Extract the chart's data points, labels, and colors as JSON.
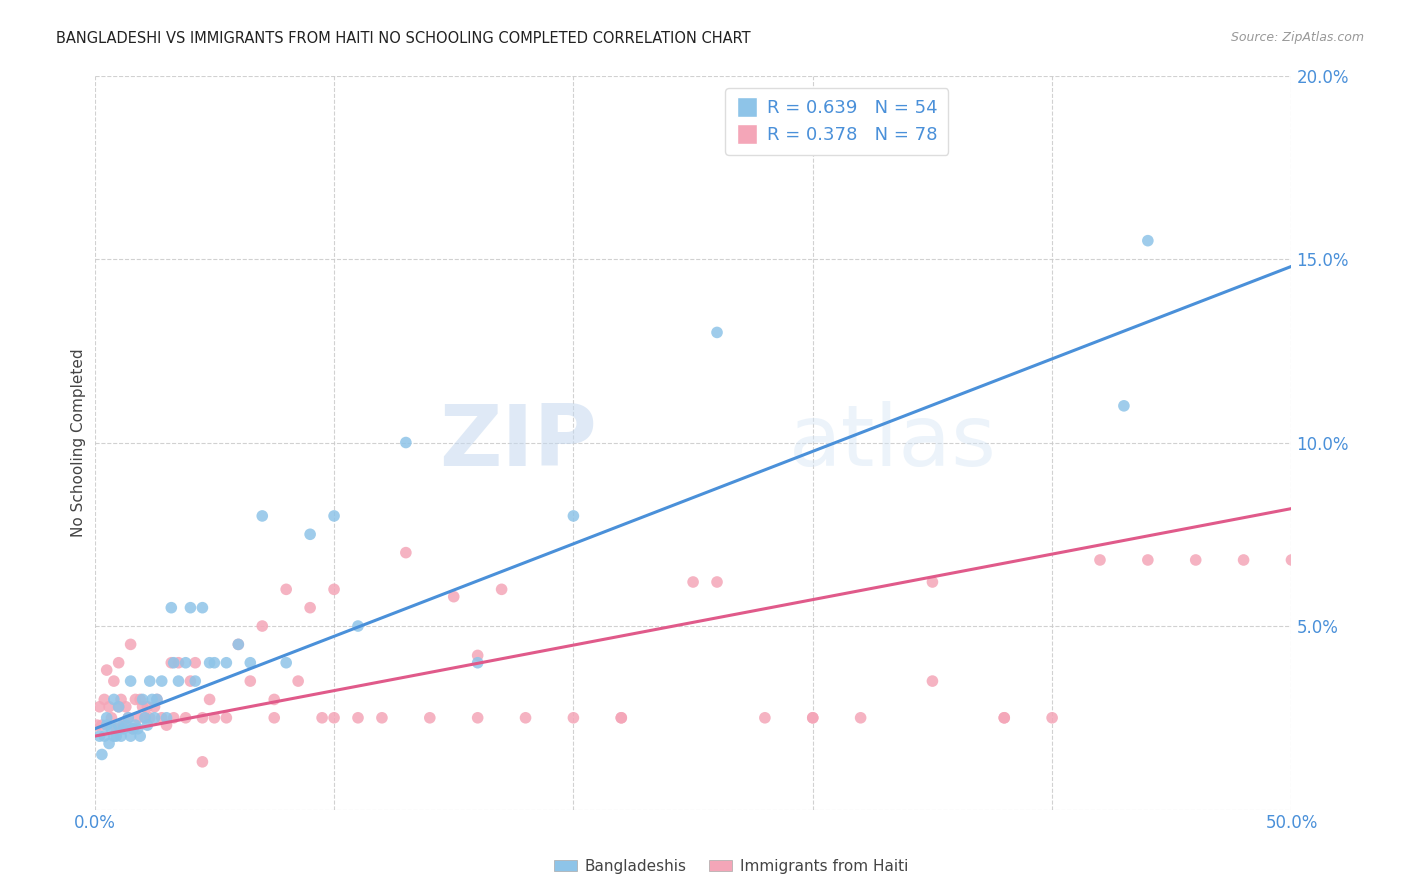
{
  "title": "BANGLADESHI VS IMMIGRANTS FROM HAITI NO SCHOOLING COMPLETED CORRELATION CHART",
  "source": "Source: ZipAtlas.com",
  "ylabel": "No Schooling Completed",
  "xlim": [
    0.0,
    0.5
  ],
  "ylim": [
    0.0,
    0.2
  ],
  "xtick_labels": [
    "0.0%",
    "",
    "",
    "",
    "",
    "50.0%"
  ],
  "xtick_vals": [
    0.0,
    0.1,
    0.2,
    0.3,
    0.4,
    0.5
  ],
  "ytick_labels": [
    "",
    "5.0%",
    "10.0%",
    "15.0%",
    "20.0%"
  ],
  "ytick_vals": [
    0.0,
    0.05,
    0.1,
    0.15,
    0.2
  ],
  "legend1_label": "R = 0.639   N = 54",
  "legend2_label": "R = 0.378   N = 78",
  "legend_label1": "Bangladeshis",
  "legend_label2": "Immigrants from Haiti",
  "blue_color": "#8ec4e8",
  "pink_color": "#f4a6b8",
  "blue_line_color": "#4a90d9",
  "pink_line_color": "#e05a8a",
  "watermark_zip": "ZIP",
  "watermark_atlas": "atlas",
  "blue_line_x0": 0.0,
  "blue_line_y0": 0.022,
  "blue_line_x1": 0.5,
  "blue_line_y1": 0.148,
  "pink_line_x0": 0.0,
  "pink_line_y0": 0.02,
  "pink_line_x1": 0.5,
  "pink_line_y1": 0.082,
  "blue_scatter_x": [
    0.002,
    0.003,
    0.004,
    0.005,
    0.005,
    0.006,
    0.007,
    0.008,
    0.008,
    0.009,
    0.01,
    0.01,
    0.011,
    0.012,
    0.013,
    0.014,
    0.015,
    0.015,
    0.016,
    0.017,
    0.018,
    0.019,
    0.02,
    0.021,
    0.022,
    0.023,
    0.024,
    0.025,
    0.026,
    0.028,
    0.03,
    0.032,
    0.033,
    0.035,
    0.038,
    0.04,
    0.042,
    0.045,
    0.048,
    0.05,
    0.055,
    0.06,
    0.065,
    0.07,
    0.08,
    0.09,
    0.1,
    0.11,
    0.13,
    0.16,
    0.2,
    0.26,
    0.43,
    0.44
  ],
  "blue_scatter_y": [
    0.02,
    0.015,
    0.02,
    0.023,
    0.025,
    0.018,
    0.022,
    0.02,
    0.03,
    0.02,
    0.023,
    0.028,
    0.02,
    0.022,
    0.023,
    0.025,
    0.02,
    0.035,
    0.022,
    0.023,
    0.022,
    0.02,
    0.03,
    0.025,
    0.023,
    0.035,
    0.03,
    0.025,
    0.03,
    0.035,
    0.025,
    0.055,
    0.04,
    0.035,
    0.04,
    0.055,
    0.035,
    0.055,
    0.04,
    0.04,
    0.04,
    0.045,
    0.04,
    0.08,
    0.04,
    0.075,
    0.08,
    0.05,
    0.1,
    0.04,
    0.08,
    0.13,
    0.11,
    0.155
  ],
  "pink_scatter_x": [
    0.001,
    0.002,
    0.003,
    0.004,
    0.005,
    0.006,
    0.007,
    0.008,
    0.009,
    0.01,
    0.01,
    0.011,
    0.012,
    0.013,
    0.014,
    0.015,
    0.016,
    0.017,
    0.018,
    0.019,
    0.02,
    0.021,
    0.022,
    0.023,
    0.025,
    0.026,
    0.028,
    0.03,
    0.032,
    0.033,
    0.035,
    0.038,
    0.04,
    0.042,
    0.045,
    0.048,
    0.05,
    0.055,
    0.06,
    0.065,
    0.07,
    0.075,
    0.08,
    0.085,
    0.09,
    0.095,
    0.1,
    0.11,
    0.12,
    0.13,
    0.14,
    0.15,
    0.16,
    0.17,
    0.18,
    0.2,
    0.22,
    0.25,
    0.28,
    0.3,
    0.32,
    0.35,
    0.38,
    0.4,
    0.42,
    0.44,
    0.46,
    0.48,
    0.5,
    0.26,
    0.35,
    0.3,
    0.38,
    0.16,
    0.22,
    0.1,
    0.075,
    0.045
  ],
  "pink_scatter_y": [
    0.023,
    0.028,
    0.023,
    0.03,
    0.038,
    0.028,
    0.025,
    0.035,
    0.022,
    0.028,
    0.04,
    0.03,
    0.023,
    0.028,
    0.025,
    0.045,
    0.022,
    0.03,
    0.025,
    0.03,
    0.028,
    0.025,
    0.028,
    0.025,
    0.028,
    0.03,
    0.025,
    0.023,
    0.04,
    0.025,
    0.04,
    0.025,
    0.035,
    0.04,
    0.025,
    0.03,
    0.025,
    0.025,
    0.045,
    0.035,
    0.05,
    0.03,
    0.06,
    0.035,
    0.055,
    0.025,
    0.06,
    0.025,
    0.025,
    0.07,
    0.025,
    0.058,
    0.042,
    0.06,
    0.025,
    0.025,
    0.025,
    0.062,
    0.025,
    0.025,
    0.025,
    0.035,
    0.025,
    0.025,
    0.068,
    0.068,
    0.068,
    0.068,
    0.068,
    0.062,
    0.062,
    0.025,
    0.025,
    0.025,
    0.025,
    0.025,
    0.025,
    0.013
  ]
}
